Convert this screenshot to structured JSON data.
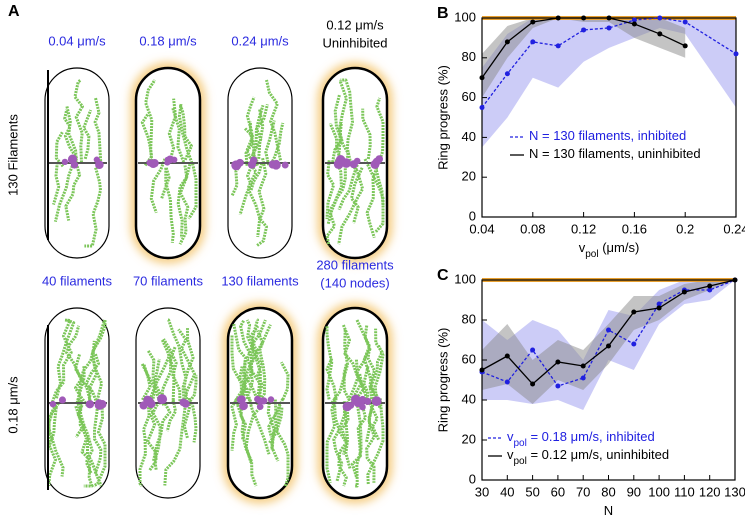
{
  "panel_a": {
    "label": "A",
    "top_row_label": "130 Filaments",
    "bottom_row_label": "0.18 μm/s",
    "top_cells": [
      {
        "lines": [
          "0.04 μm/s"
        ],
        "color": "#2a2ae0",
        "highlight": false
      },
      {
        "lines": [
          "0.18 μm/s"
        ],
        "color": "#2a2ae0",
        "highlight": true
      },
      {
        "lines": [
          "0.24 μm/s"
        ],
        "color": "#2a2ae0",
        "highlight": false
      },
      {
        "lines": [
          "0.12 μm/s",
          "Uninhibited"
        ],
        "color": "#000000",
        "highlight": true
      }
    ],
    "bottom_cells": [
      {
        "lines": [
          "40 filaments"
        ],
        "color": "#2a2ae0",
        "highlight": false
      },
      {
        "lines": [
          "70 filaments"
        ],
        "color": "#2a2ae0",
        "highlight": false
      },
      {
        "lines": [
          "130 filaments"
        ],
        "color": "#2a2ae0",
        "highlight": true
      },
      {
        "lines": [
          "280 filaments",
          "(140 nodes)"
        ],
        "color": "#2a2ae0",
        "highlight": true
      }
    ]
  },
  "chart_data": [
    {
      "type": "line",
      "panel": "B",
      "ylabel": "Ring progress (%)",
      "xlabel": [
        {
          "text": "v"
        },
        {
          "text": "pol",
          "sub": true
        },
        {
          "text": " (μm/s)"
        }
      ],
      "xlim": [
        0.04,
        0.24
      ],
      "xticks": [
        0.04,
        0.08,
        0.12,
        0.16,
        0.2,
        0.24
      ],
      "ylim": [
        0,
        100
      ],
      "yticks": [
        0,
        20,
        40,
        60,
        80,
        100
      ],
      "reference": {
        "value": 100,
        "color": "#e8a030"
      },
      "legend": "lower center",
      "series": [
        {
          "name": [
            {
              "text": "N = 130 filaments, inhibited"
            }
          ],
          "color": "#2020e0",
          "band_color": "#9a9af0",
          "dashed": true,
          "x": [
            0.04,
            0.06,
            0.08,
            0.1,
            0.12,
            0.14,
            0.16,
            0.18,
            0.2,
            0.24
          ],
          "values": [
            55,
            72,
            88,
            86,
            94,
            95,
            99,
            100,
            98,
            82
          ],
          "band": {
            "lower": [
              35,
              50,
              70,
              65,
              78,
              85,
              90,
              95,
              92,
              55
            ],
            "upper": [
              75,
              92,
              100,
              100,
              100,
              100,
              100,
              100,
              100,
              100
            ]
          }
        },
        {
          "name": [
            {
              "text": "N = 130 filaments, uninhibited"
            }
          ],
          "color": "#000000",
          "band_color": "#8a8a8a",
          "dashed": false,
          "x": [
            0.04,
            0.06,
            0.08,
            0.1,
            0.12,
            0.14,
            0.16,
            0.18,
            0.2
          ],
          "values": [
            70,
            88,
            98,
            100,
            100,
            100,
            97,
            92,
            86
          ],
          "band": {
            "lower": [
              60,
              80,
              95,
              100,
              98,
              98,
              90,
              85,
              80
            ],
            "upper": [
              82,
              96,
              100,
              100,
              100,
              100,
              100,
              100,
              95
            ]
          }
        }
      ]
    },
    {
      "type": "line",
      "panel": "C",
      "ylabel": "Ring progress (%)",
      "xlabel": [
        {
          "text": "N"
        }
      ],
      "xlim": [
        30,
        130
      ],
      "xticks": [
        30,
        40,
        50,
        60,
        70,
        80,
        90,
        100,
        110,
        120,
        130
      ],
      "ylim": [
        0,
        100
      ],
      "yticks": [
        0,
        20,
        40,
        60,
        80,
        100
      ],
      "reference": {
        "value": 100,
        "color": "#e8a030"
      },
      "legend": "lower right",
      "series": [
        {
          "name": [
            {
              "text": "v"
            },
            {
              "text": "pol",
              "sub": true
            },
            {
              "text": " = 0.18 μm/s, inhibited"
            }
          ],
          "color": "#2020e0",
          "band_color": "#9a9af0",
          "dashed": true,
          "x": [
            30,
            40,
            50,
            60,
            70,
            80,
            90,
            100,
            110,
            120,
            130
          ],
          "values": [
            54,
            49,
            65,
            47,
            51,
            75,
            68,
            88,
            95,
            95,
            100
          ],
          "band": {
            "lower": [
              40,
              40,
              38,
              40,
              35,
              60,
              55,
              78,
              88,
              90,
              100
            ],
            "upper": [
              80,
              70,
              80,
              75,
              60,
              85,
              82,
              95,
              100,
              100,
              100
            ]
          }
        },
        {
          "name": [
            {
              "text": "v"
            },
            {
              "text": "pol",
              "sub": true
            },
            {
              "text": " = 0.12 μm/s, uninhibited"
            }
          ],
          "color": "#000000",
          "band_color": "#8a8a8a",
          "dashed": false,
          "x": [
            30,
            40,
            50,
            60,
            70,
            80,
            90,
            100,
            110,
            120,
            130
          ],
          "values": [
            55,
            62,
            48,
            59,
            57,
            67,
            84,
            86,
            94,
            97,
            100
          ],
          "band": {
            "lower": [
              45,
              48,
              38,
              50,
              45,
              58,
              75,
              80,
              90,
              95,
              100
            ],
            "upper": [
              65,
              78,
              60,
              70,
              65,
              78,
              92,
              92,
              98,
              100,
              100
            ]
          }
        }
      ]
    }
  ]
}
